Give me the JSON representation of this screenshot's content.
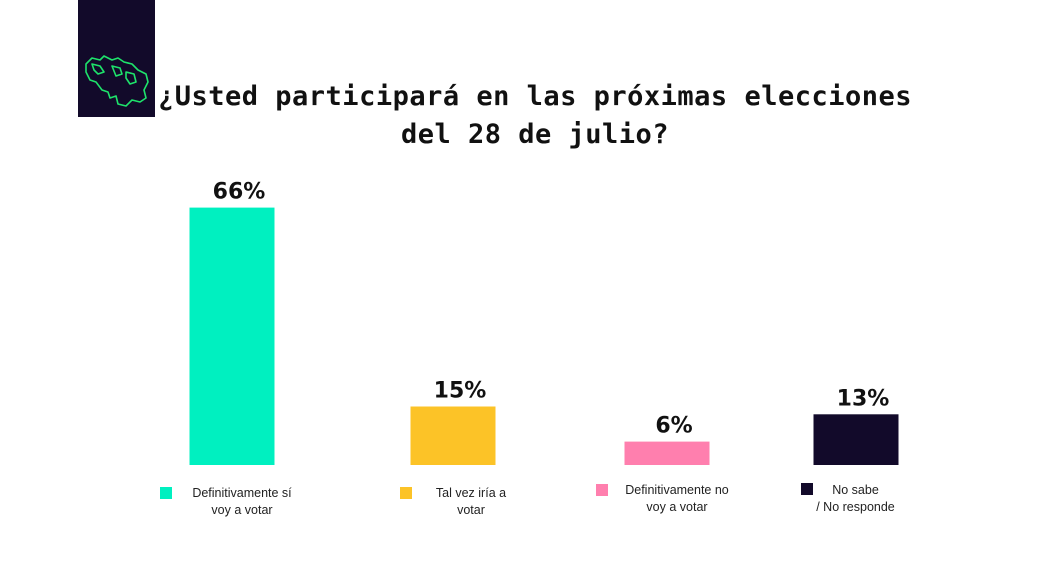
{
  "header": {
    "logo_icon": "venezuela-map-outline-icon",
    "title_line1": "¿Usted participará en las próximas elecciones",
    "title_line2": "del 28 de julio?"
  },
  "chart_data": {
    "type": "bar",
    "title": "¿Usted participará en las próximas elecciones del 28 de julio?",
    "categories": [
      "Definitivamente sí voy a votar",
      "Tal vez iría a votar",
      "Definitivamente no voy a votar",
      "No sabe / No responde"
    ],
    "values": [
      66,
      15,
      6,
      13
    ],
    "value_labels": [
      "66%",
      "15%",
      "6%",
      "13%"
    ],
    "colors": [
      "#00f0c0",
      "#fcc327",
      "#ff7fae",
      "#120a2a"
    ],
    "grid": false,
    "legend": [
      {
        "line1": "Definitivamente sí",
        "line2": "voy a votar"
      },
      {
        "line1": "Tal vez iría a",
        "line2": "votar"
      },
      {
        "line1": "Definitivamente no",
        "line2": "voy a votar"
      },
      {
        "line1": "No sabe",
        "line2": "/ No responde"
      }
    ]
  }
}
